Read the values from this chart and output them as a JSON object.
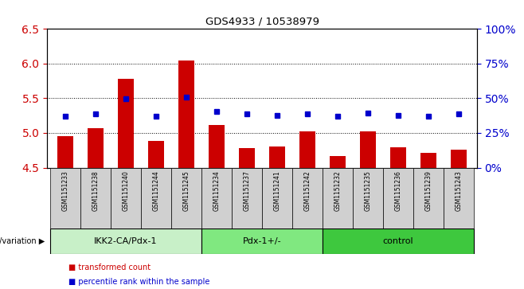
{
  "title": "GDS4933 / 10538979",
  "samples": [
    "GSM1151233",
    "GSM1151238",
    "GSM1151240",
    "GSM1151244",
    "GSM1151245",
    "GSM1151234",
    "GSM1151237",
    "GSM1151241",
    "GSM1151242",
    "GSM1151232",
    "GSM1151235",
    "GSM1151236",
    "GSM1151239",
    "GSM1151243"
  ],
  "bar_values": [
    4.95,
    5.07,
    5.78,
    4.88,
    6.04,
    5.12,
    4.78,
    4.81,
    5.02,
    4.67,
    5.02,
    4.79,
    4.71,
    4.76
  ],
  "dot_values": [
    5.24,
    5.27,
    5.49,
    5.24,
    5.52,
    5.31,
    5.27,
    5.25,
    5.28,
    5.24,
    5.29,
    5.25,
    5.24,
    5.27
  ],
  "ylim_left": [
    4.5,
    6.5
  ],
  "ylim_right": [
    0,
    100
  ],
  "yticks_left": [
    4.5,
    5.0,
    5.5,
    6.0,
    6.5
  ],
  "yticks_right": [
    0,
    25,
    50,
    75,
    100
  ],
  "ytick_labels_right": [
    "0%",
    "25%",
    "50%",
    "75%",
    "100%"
  ],
  "groups": [
    {
      "label": "IKK2-CA/Pdx-1",
      "start": 0,
      "end": 5,
      "color": "#c8f0c8"
    },
    {
      "label": "Pdx-1+/-",
      "start": 5,
      "end": 9,
      "color": "#80e880"
    },
    {
      "label": "control",
      "start": 9,
      "end": 14,
      "color": "#3ec83e"
    }
  ],
  "bar_color": "#cc0000",
  "dot_color": "#0000cc",
  "bar_bottom": 4.5,
  "left_tick_color": "#cc0000",
  "right_tick_color": "#0000cc",
  "legend_red_label": "transformed count",
  "legend_blue_label": "percentile rank within the sample",
  "genotype_label": "genotype/variation",
  "sample_box_color": "#d0d0d0",
  "n_samples": 14,
  "group_border_color": "#000000"
}
